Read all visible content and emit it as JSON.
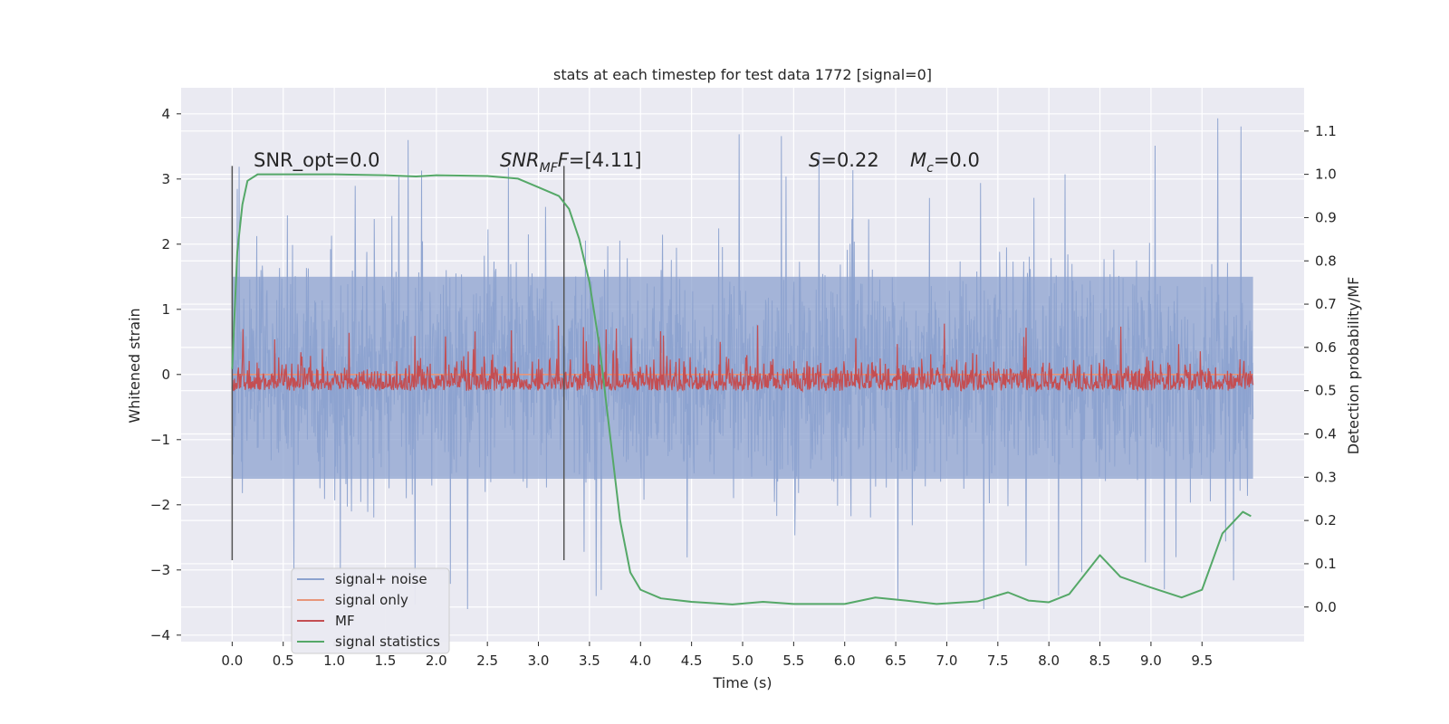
{
  "chart_data": {
    "type": "line",
    "title": "stats at each timestep for test data 1772 [signal=0]",
    "xlabel": "Time (s)",
    "ylabel": "Whitened strain",
    "y2label": "Detection probability/MF",
    "xlim": [
      -0.5,
      10.5
    ],
    "ylim": [
      -4.1,
      4.4
    ],
    "y2lim": [
      -0.08,
      1.2
    ],
    "x_ticks": [
      "0.0",
      "0.5",
      "1.0",
      "1.5",
      "2.0",
      "2.5",
      "3.0",
      "3.5",
      "4.0",
      "4.5",
      "5.0",
      "5.5",
      "6.0",
      "6.5",
      "7.0",
      "7.5",
      "8.0",
      "8.5",
      "9.0",
      "9.5"
    ],
    "y_ticks": [
      "4",
      "3",
      "2",
      "1",
      "0",
      "−1",
      "−2",
      "−3",
      "−4"
    ],
    "y2_ticks": [
      "1.1",
      "1.0",
      "0.9",
      "0.8",
      "0.7",
      "0.6",
      "0.5",
      "0.4",
      "0.3",
      "0.2",
      "0.1",
      "0.0"
    ],
    "grid": true,
    "legend_position": "lower-left",
    "annotations": {
      "snr_opt": "SNR_opt=0.0",
      "snr_mf_sym": "SNR",
      "snr_mf_sub": "MF",
      "snr_mf_val": "=[4.11]",
      "s_sym": "S",
      "s_val": "=0.22",
      "mc_sym": "M",
      "mc_sub": "c",
      "mc_val": "=0.0"
    },
    "vlines": [
      0.0,
      3.25
    ],
    "vline_range": [
      -2.85,
      3.2
    ],
    "series": [
      {
        "name": "signal+ noise",
        "color": "#8ca2cf",
        "axis": "left",
        "x_range": [
          0.0,
          10.0
        ],
        "envelope": {
          "typical": [
            -1.6,
            1.5
          ],
          "extreme": [
            -3.6,
            4.05
          ]
        }
      },
      {
        "name": "signal only",
        "color": "#e8967a",
        "axis": "left",
        "x": [
          0.0,
          10.0
        ],
        "y": [
          0.0,
          0.0
        ]
      },
      {
        "name": "MF",
        "color": "#c44e52",
        "axis": "right",
        "x_range": [
          0.0,
          10.0
        ],
        "envelope": {
          "typical": [
            0.5,
            0.57
          ],
          "extreme": [
            0.5,
            0.66
          ]
        }
      },
      {
        "name": "signal statistics",
        "color": "#55a868",
        "axis": "right",
        "x": [
          0.0,
          0.05,
          0.1,
          0.15,
          0.25,
          0.5,
          1.0,
          1.5,
          1.8,
          2.0,
          2.5,
          2.8,
          3.0,
          3.2,
          3.3,
          3.4,
          3.5,
          3.6,
          3.7,
          3.8,
          3.9,
          4.0,
          4.2,
          4.5,
          4.9,
          5.2,
          5.5,
          6.0,
          6.3,
          6.6,
          6.9,
          7.3,
          7.6,
          7.8,
          8.0,
          8.2,
          8.5,
          8.7,
          9.0,
          9.3,
          9.5,
          9.7,
          9.9,
          9.98
        ],
        "y": [
          0.55,
          0.82,
          0.93,
          0.985,
          1.0,
          1.0,
          1.0,
          0.998,
          0.995,
          0.998,
          0.996,
          0.99,
          0.97,
          0.95,
          0.92,
          0.85,
          0.75,
          0.6,
          0.4,
          0.2,
          0.08,
          0.04,
          0.02,
          0.012,
          0.006,
          0.012,
          0.007,
          0.007,
          0.022,
          0.015,
          0.007,
          0.013,
          0.034,
          0.015,
          0.011,
          0.03,
          0.12,
          0.07,
          0.045,
          0.022,
          0.04,
          0.17,
          0.22,
          0.21
        ]
      }
    ]
  }
}
